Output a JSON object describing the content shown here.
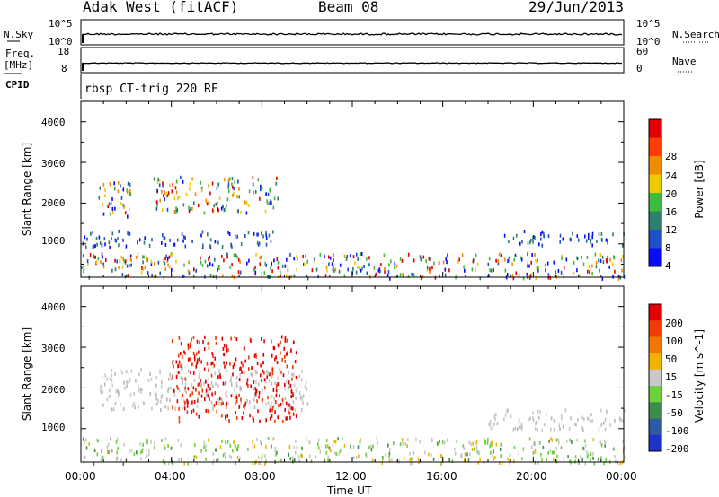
{
  "header": {
    "station": "Adak West (fitACF)",
    "beam": "Beam 08",
    "date": "29/Jun/2013"
  },
  "top_panels": {
    "nsky_label": "N.Sky",
    "nsky_ticks": [
      "10^5",
      "10^0"
    ],
    "nsearch_label": "N.Search",
    "nsearch_ticks": [
      "10^5",
      "10^0"
    ],
    "freq_label_1": "Freq.",
    "freq_label_2": "[MHz]",
    "freq_ticks": [
      "18",
      "8"
    ],
    "nave_label": "Nave",
    "nave_ticks": [
      "60",
      "0"
    ],
    "cpid_label": "CPID",
    "cpid_value": "rbsp CT-trig 220 RF"
  },
  "chart_data": [
    {
      "type": "heatmap",
      "parameter": "Power",
      "ylabel": "Slant Range [km]",
      "colorbar_label": "Power [dB]",
      "ylim": [
        180,
        4500
      ],
      "yticks": [
        1000,
        2000,
        3000,
        4000
      ],
      "xlim_hours": [
        0,
        24
      ],
      "colorbar_ticks": [
        "4",
        "8",
        "12",
        "16",
        "20",
        "24",
        "28"
      ],
      "colorbar_colors": [
        "#0a0aff",
        "#1e50c8",
        "#2f7f6e",
        "#3cbc3c",
        "#f0c800",
        "#f08c00",
        "#ff3c00",
        "#e00000"
      ],
      "echo_regions": [
        {
          "t_start": 0.6,
          "t_end": 2.2,
          "r_min": 1700,
          "r_max": 2600,
          "level": "mixed"
        },
        {
          "t_start": 3.2,
          "t_end": 8.8,
          "r_min": 1800,
          "r_max": 2700,
          "level": "mixed"
        },
        {
          "t_start": 0.0,
          "t_end": 8.5,
          "r_min": 950,
          "r_max": 1350,
          "level": "low"
        },
        {
          "t_start": 18.5,
          "t_end": 24.0,
          "r_min": 1000,
          "r_max": 1350,
          "level": "low"
        },
        {
          "t_start": 0.0,
          "t_end": 24.0,
          "r_min": 180,
          "r_max": 800,
          "level": "mixed"
        }
      ]
    },
    {
      "type": "heatmap",
      "parameter": "Velocity",
      "ylabel": "Slant Range [km]",
      "colorbar_label": "Velocity [m s^-1]",
      "ylim": [
        180,
        4500
      ],
      "yticks": [
        1000,
        2000,
        3000,
        4000
      ],
      "xlim_hours": [
        0,
        24
      ],
      "colorbar_ticks": [
        "200",
        "100",
        "50",
        "15",
        "-15",
        "-50",
        "-100",
        "-200"
      ],
      "colorbar_colors": [
        "#1e32c8",
        "#2d5aa0",
        "#3f8c4a",
        "#6ecf3c",
        "#c8c8c8",
        "#f0b400",
        "#f07800",
        "#f03c00",
        "#e00000"
      ],
      "echo_regions": [
        {
          "t_start": 0.8,
          "t_end": 10.0,
          "r_min": 1500,
          "r_max": 2500,
          "level": "grey"
        },
        {
          "t_start": 4.0,
          "t_end": 9.5,
          "r_min": 1200,
          "r_max": 3300,
          "level": "red"
        },
        {
          "t_start": 0.0,
          "t_end": 24.0,
          "r_min": 180,
          "r_max": 800,
          "level": "mixed"
        },
        {
          "t_start": 18.0,
          "t_end": 24.0,
          "r_min": 1000,
          "r_max": 1500,
          "level": "grey"
        }
      ]
    }
  ],
  "time_axis": {
    "ticks": [
      "00:00",
      "04:00",
      "08:00",
      "12:00",
      "16:00",
      "20:00",
      "00:00"
    ],
    "label": "Time UT"
  }
}
